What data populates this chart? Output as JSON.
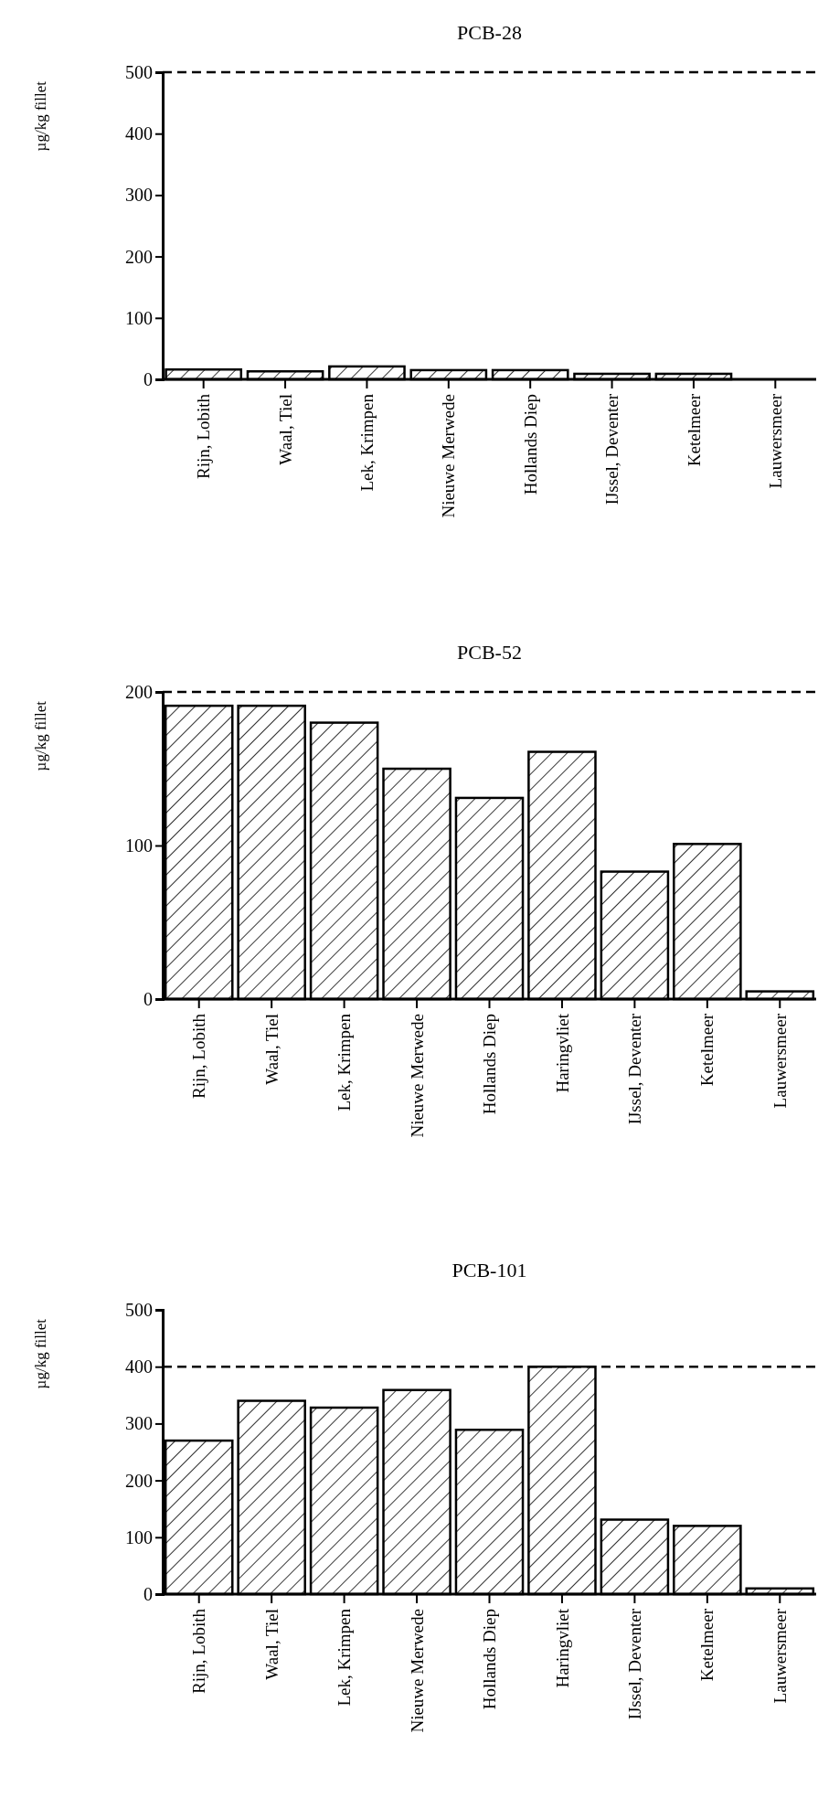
{
  "chart_data": [
    {
      "type": "bar",
      "title": "PCB-28",
      "ylabel": "µg/kg fillet",
      "categories": [
        "Rijn, Lobith",
        "Waal, Tiel",
        "Lek, Krimpen",
        "Nieuwe Merwede",
        "Hollands Diep",
        "IJssel, Deventer",
        "Ketelmeer",
        "Lauwersmeer"
      ],
      "series": [
        {
          "color": "#000000",
          "values": [
            16,
            13,
            21,
            15,
            15,
            9,
            9,
            null
          ]
        }
      ],
      "ylim": [
        0,
        500
      ],
      "yticks": [
        0,
        100,
        200,
        300,
        400,
        500
      ],
      "ref_lines": [
        {
          "axis": "y",
          "value": 500,
          "line_style": "dashed"
        }
      ]
    },
    {
      "type": "bar",
      "title": "PCB-52",
      "ylabel": "µg/kg fillet",
      "categories": [
        "Rijn, Lobith",
        "Waal, Tiel",
        "Lek, Krimpen",
        "Nieuwe Merwede",
        "Hollands Diep",
        "Haringvliet",
        "IJssel, Deventer",
        "Ketelmeer",
        "Lauwersmeer"
      ],
      "series": [
        {
          "color": "#000000",
          "values": [
            191,
            191,
            180,
            150,
            131,
            161,
            83,
            101,
            5
          ]
        }
      ],
      "ylim": [
        0,
        200
      ],
      "yticks": [
        0,
        100,
        200
      ],
      "ref_lines": [
        {
          "axis": "y",
          "value": 200,
          "line_style": "dashed"
        }
      ]
    },
    {
      "type": "bar",
      "title": "PCB-101",
      "ylabel": "µg/kg fillet",
      "categories": [
        "Rijn, Lobith",
        "Waal, Tiel",
        "Lek, Krimpen",
        "Nieuwe Merwede",
        "Hollands Diep",
        "Haringvliet",
        "IJssel, Deventer",
        "Ketelmeer",
        "Lauwersmeer"
      ],
      "series": [
        {
          "color": "#000000",
          "values": [
            270,
            340,
            328,
            359,
            289,
            400,
            131,
            120,
            10
          ]
        }
      ],
      "ylim": [
        0,
        500
      ],
      "yticks": [
        0,
        100,
        200,
        300,
        400,
        500
      ],
      "ref_lines": [
        {
          "axis": "y",
          "value": 400,
          "line_style": "dashed"
        }
      ]
    }
  ]
}
